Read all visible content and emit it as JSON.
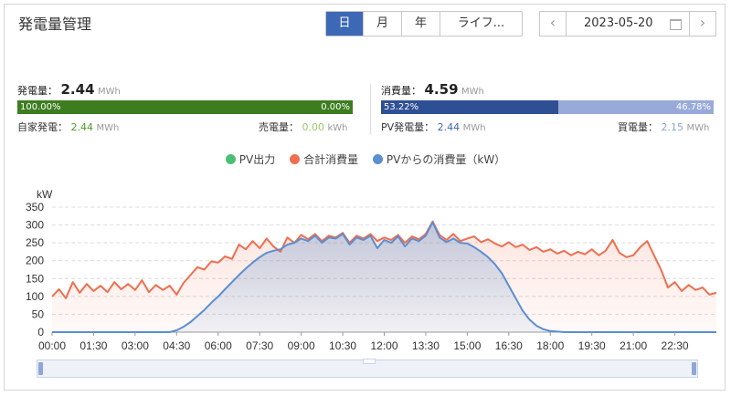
{
  "title": "発電量管理",
  "tabs": [
    {
      "label": "日",
      "active": true
    },
    {
      "label": "月",
      "active": false
    },
    {
      "label": "年",
      "active": false
    },
    {
      "label": "ライフ...",
      "active": false
    }
  ],
  "date": {
    "prev": "‹",
    "next": "›",
    "value": "2023-05-20"
  },
  "generation": {
    "label": "発電量：",
    "value": "2.44",
    "unit": "MWh",
    "bar_left": "100.00%",
    "bar_right": "0.00%",
    "self_label": "自家発電：",
    "self_value": "2.44",
    "self_unit": "MWh",
    "sell_label": "売電量：",
    "sell_value": "0.00",
    "sell_unit": "kWh",
    "self_fraction": 1.0
  },
  "consumption": {
    "label": "消費量：",
    "value": "4.59",
    "unit": "MWh",
    "bar_left": "53.22%",
    "bar_right": "46.78%",
    "pv_label": "PV発電量：",
    "pv_value": "2.44",
    "pv_unit": "MWh",
    "buy_label": "買電量：",
    "buy_value": "2.15",
    "buy_unit": "MWh",
    "pv_fraction": 0.5322
  },
  "colors": {
    "active_tab": "#3d68b5",
    "generation_bar": "#3d7d20",
    "consumption_bar": "#2f4f95",
    "consumption_bar_light": "#98aad9",
    "pv_output": "#4bbf73",
    "total_consumption": "#ef6e4f",
    "pv_consumption": "#5b8fd0"
  },
  "legend": [
    {
      "name": "PV出力",
      "color": "#4bbf73"
    },
    {
      "name": "合計消費量",
      "color": "#ef6e4f"
    },
    {
      "name": "PVからの消費量（kW）",
      "color": "#5b8fd0"
    }
  ],
  "chart_data": {
    "type": "line",
    "ylabel": "kW",
    "ylim": [
      0,
      350
    ],
    "yticks": [
      0,
      50,
      100,
      150,
      200,
      250,
      300,
      350
    ],
    "xlim": [
      "00:00",
      "24:00"
    ],
    "xticks": [
      "00:00",
      "01:30",
      "03:00",
      "04:30",
      "06:00",
      "07:30",
      "09:00",
      "10:30",
      "12:00",
      "13:30",
      "15:00",
      "16:30",
      "18:00",
      "19:30",
      "21:00",
      "22:30"
    ],
    "grid": true,
    "legend_position": "top-center",
    "series": [
      {
        "name": "合計消費量",
        "color": "#ef6e4f",
        "area": true,
        "points": [
          [
            "00:00",
            100
          ],
          [
            "00:15",
            120
          ],
          [
            "00:30",
            95
          ],
          [
            "00:45",
            140
          ],
          [
            "01:00",
            110
          ],
          [
            "01:15",
            135
          ],
          [
            "01:30",
            115
          ],
          [
            "01:45",
            130
          ],
          [
            "02:00",
            112
          ],
          [
            "02:15",
            140
          ],
          [
            "02:30",
            120
          ],
          [
            "02:45",
            135
          ],
          [
            "03:00",
            118
          ],
          [
            "03:15",
            145
          ],
          [
            "03:30",
            112
          ],
          [
            "03:45",
            132
          ],
          [
            "04:00",
            118
          ],
          [
            "04:15",
            130
          ],
          [
            "04:30",
            105
          ],
          [
            "04:45",
            138
          ],
          [
            "05:00",
            160
          ],
          [
            "05:15",
            182
          ],
          [
            "05:30",
            175
          ],
          [
            "05:45",
            198
          ],
          [
            "06:00",
            195
          ],
          [
            "06:15",
            212
          ],
          [
            "06:30",
            205
          ],
          [
            "06:45",
            245
          ],
          [
            "07:00",
            232
          ],
          [
            "07:15",
            255
          ],
          [
            "07:30",
            235
          ],
          [
            "07:45",
            262
          ],
          [
            "08:00",
            240
          ],
          [
            "08:15",
            225
          ],
          [
            "08:30",
            265
          ],
          [
            "08:45",
            250
          ],
          [
            "09:00",
            272
          ],
          [
            "09:15",
            260
          ],
          [
            "09:30",
            275
          ],
          [
            "09:45",
            255
          ],
          [
            "10:00",
            270
          ],
          [
            "10:15",
            265
          ],
          [
            "10:30",
            278
          ],
          [
            "10:45",
            250
          ],
          [
            "11:00",
            270
          ],
          [
            "11:15",
            262
          ],
          [
            "11:30",
            275
          ],
          [
            "11:45",
            255
          ],
          [
            "12:00",
            265
          ],
          [
            "12:15",
            258
          ],
          [
            "12:30",
            272
          ],
          [
            "12:45",
            250
          ],
          [
            "13:00",
            268
          ],
          [
            "13:15",
            260
          ],
          [
            "13:30",
            275
          ],
          [
            "13:45",
            310
          ],
          [
            "14:00",
            272
          ],
          [
            "14:15",
            258
          ],
          [
            "14:30",
            275
          ],
          [
            "14:45",
            255
          ],
          [
            "15:00",
            262
          ],
          [
            "15:15",
            268
          ],
          [
            "15:30",
            252
          ],
          [
            "15:45",
            260
          ],
          [
            "16:00",
            248
          ],
          [
            "16:15",
            240
          ],
          [
            "16:30",
            252
          ],
          [
            "16:45",
            238
          ],
          [
            "17:00",
            245
          ],
          [
            "17:15",
            230
          ],
          [
            "17:30",
            238
          ],
          [
            "17:45",
            225
          ],
          [
            "18:00",
            232
          ],
          [
            "18:15",
            220
          ],
          [
            "18:30",
            228
          ],
          [
            "18:45",
            215
          ],
          [
            "19:00",
            225
          ],
          [
            "19:15",
            218
          ],
          [
            "19:30",
            232
          ],
          [
            "19:45",
            215
          ],
          [
            "20:00",
            228
          ],
          [
            "20:15",
            258
          ],
          [
            "20:30",
            222
          ],
          [
            "20:45",
            210
          ],
          [
            "21:00",
            215
          ],
          [
            "21:15",
            238
          ],
          [
            "21:30",
            255
          ],
          [
            "21:45",
            215
          ],
          [
            "22:00",
            175
          ],
          [
            "22:15",
            125
          ],
          [
            "22:30",
            140
          ],
          [
            "22:45",
            115
          ],
          [
            "23:00",
            132
          ],
          [
            "23:15",
            118
          ],
          [
            "23:30",
            125
          ],
          [
            "23:45",
            105
          ],
          [
            "24:00",
            110
          ]
        ]
      },
      {
        "name": "PVからの消費量（kW）",
        "color": "#5b8fd0",
        "area": true,
        "points": [
          [
            "00:00",
            0
          ],
          [
            "03:00",
            0
          ],
          [
            "04:15",
            0
          ],
          [
            "04:30",
            5
          ],
          [
            "04:45",
            15
          ],
          [
            "05:00",
            28
          ],
          [
            "05:15",
            45
          ],
          [
            "05:30",
            62
          ],
          [
            "05:45",
            82
          ],
          [
            "06:00",
            100
          ],
          [
            "06:15",
            120
          ],
          [
            "06:30",
            140
          ],
          [
            "06:45",
            160
          ],
          [
            "07:00",
            178
          ],
          [
            "07:15",
            195
          ],
          [
            "07:30",
            210
          ],
          [
            "07:45",
            222
          ],
          [
            "08:00",
            228
          ],
          [
            "08:15",
            232
          ],
          [
            "08:30",
            245
          ],
          [
            "08:45",
            250
          ],
          [
            "09:00",
            262
          ],
          [
            "09:15",
            255
          ],
          [
            "09:30",
            270
          ],
          [
            "09:45",
            250
          ],
          [
            "10:00",
            265
          ],
          [
            "10:15",
            262
          ],
          [
            "10:30",
            275
          ],
          [
            "10:45",
            245
          ],
          [
            "11:00",
            265
          ],
          [
            "11:15",
            258
          ],
          [
            "11:30",
            270
          ],
          [
            "11:45",
            235
          ],
          [
            "12:00",
            258
          ],
          [
            "12:15",
            250
          ],
          [
            "12:30",
            268
          ],
          [
            "12:45",
            240
          ],
          [
            "13:00",
            262
          ],
          [
            "13:15",
            255
          ],
          [
            "13:30",
            270
          ],
          [
            "13:45",
            308
          ],
          [
            "14:00",
            265
          ],
          [
            "14:15",
            252
          ],
          [
            "14:30",
            262
          ],
          [
            "14:45",
            250
          ],
          [
            "15:00",
            248
          ],
          [
            "15:15",
            238
          ],
          [
            "15:30",
            225
          ],
          [
            "15:45",
            210
          ],
          [
            "16:00",
            190
          ],
          [
            "16:15",
            165
          ],
          [
            "16:30",
            130
          ],
          [
            "16:45",
            95
          ],
          [
            "17:00",
            60
          ],
          [
            "17:15",
            35
          ],
          [
            "17:30",
            18
          ],
          [
            "17:45",
            8
          ],
          [
            "18:00",
            3
          ],
          [
            "18:30",
            0
          ],
          [
            "24:00",
            0
          ]
        ]
      }
    ]
  }
}
